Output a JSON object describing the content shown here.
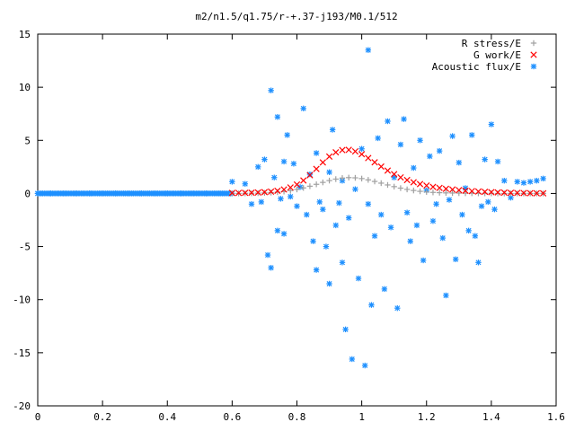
{
  "chart_data": {
    "type": "scatter",
    "title": "m2/n1.5/q1.75/r-+.37-j193/M0.1/512",
    "xlabel": "",
    "ylabel": "",
    "xlim": [
      0,
      1.6
    ],
    "ylim": [
      -20,
      15
    ],
    "x_ticks": [
      "0",
      "0.2",
      "0.4",
      "0.6",
      "0.8",
      "1",
      "1.2",
      "1.4",
      "1.6"
    ],
    "y_ticks": [
      "15",
      "10",
      "5",
      "0",
      "-5",
      "-10",
      "-15",
      "-20"
    ],
    "legend_position": "top-right",
    "series": [
      {
        "name": "R stress/E",
        "marker": "plus",
        "color": "#a0a0a0",
        "x": [
          0.6,
          0.62,
          0.64,
          0.66,
          0.68,
          0.7,
          0.72,
          0.74,
          0.76,
          0.78,
          0.8,
          0.82,
          0.84,
          0.86,
          0.88,
          0.9,
          0.92,
          0.94,
          0.96,
          0.98,
          1.0,
          1.02,
          1.04,
          1.06,
          1.08,
          1.1,
          1.12,
          1.14,
          1.16,
          1.18,
          1.2,
          1.22,
          1.24,
          1.26,
          1.28,
          1.3,
          1.32,
          1.34,
          1.36,
          1.38,
          1.4,
          1.42,
          1.44,
          1.46,
          1.48,
          1.5,
          1.52,
          1.54,
          1.56
        ],
        "y": [
          0.0,
          0.0,
          0.01,
          0.02,
          0.03,
          0.05,
          0.08,
          0.12,
          0.18,
          0.27,
          0.38,
          0.52,
          0.68,
          0.86,
          1.04,
          1.21,
          1.35,
          1.45,
          1.49,
          1.47,
          1.4,
          1.28,
          1.13,
          0.97,
          0.8,
          0.64,
          0.5,
          0.38,
          0.28,
          0.2,
          0.14,
          0.1,
          0.07,
          0.05,
          0.04,
          0.03,
          0.02,
          0.02,
          0.01,
          0.01,
          0.01,
          0.0,
          0.0,
          0.0,
          0.0,
          0.0,
          0.0,
          0.0,
          0.0
        ]
      },
      {
        "name": "G work/E",
        "marker": "cross",
        "color": "#ff0000",
        "x": [
          0.6,
          0.62,
          0.64,
          0.66,
          0.68,
          0.7,
          0.72,
          0.74,
          0.76,
          0.78,
          0.8,
          0.82,
          0.84,
          0.86,
          0.88,
          0.9,
          0.92,
          0.94,
          0.96,
          0.98,
          1.0,
          1.02,
          1.04,
          1.06,
          1.08,
          1.1,
          1.12,
          1.14,
          1.16,
          1.18,
          1.2,
          1.22,
          1.24,
          1.26,
          1.28,
          1.3,
          1.32,
          1.34,
          1.36,
          1.38,
          1.4,
          1.42,
          1.44,
          1.46,
          1.48,
          1.5,
          1.52,
          1.54,
          1.56
        ],
        "y": [
          0.05,
          0.05,
          0.06,
          0.07,
          0.09,
          0.12,
          0.17,
          0.25,
          0.37,
          0.56,
          0.84,
          1.22,
          1.72,
          2.31,
          2.92,
          3.47,
          3.87,
          4.08,
          4.1,
          3.96,
          3.69,
          3.33,
          2.93,
          2.53,
          2.15,
          1.81,
          1.51,
          1.26,
          1.05,
          0.88,
          0.74,
          0.62,
          0.52,
          0.44,
          0.37,
          0.31,
          0.26,
          0.22,
          0.18,
          0.15,
          0.12,
          0.1,
          0.08,
          0.06,
          0.05,
          0.04,
          0.03,
          0.02,
          0.01
        ]
      },
      {
        "name": "Acoustic flux/E",
        "marker": "star",
        "color": "#1e90ff",
        "x": [
          0.0,
          0.04,
          0.08,
          0.12,
          0.16,
          0.2,
          0.24,
          0.28,
          0.32,
          0.36,
          0.4,
          0.44,
          0.48,
          0.52,
          0.56,
          0.6,
          0.64,
          0.66,
          0.68,
          0.69,
          0.7,
          0.71,
          0.72,
          0.72,
          0.73,
          0.74,
          0.74,
          0.75,
          0.76,
          0.76,
          0.77,
          0.78,
          0.79,
          0.8,
          0.81,
          0.82,
          0.83,
          0.84,
          0.85,
          0.86,
          0.86,
          0.87,
          0.88,
          0.89,
          0.9,
          0.9,
          0.91,
          0.92,
          0.93,
          0.94,
          0.94,
          0.95,
          0.96,
          0.97,
          0.98,
          0.99,
          1.0,
          1.01,
          1.02,
          1.02,
          1.03,
          1.04,
          1.05,
          1.06,
          1.07,
          1.08,
          1.09,
          1.1,
          1.11,
          1.12,
          1.13,
          1.14,
          1.15,
          1.16,
          1.17,
          1.18,
          1.19,
          1.2,
          1.21,
          1.22,
          1.23,
          1.24,
          1.25,
          1.26,
          1.27,
          1.28,
          1.29,
          1.3,
          1.31,
          1.32,
          1.33,
          1.34,
          1.35,
          1.36,
          1.37,
          1.38,
          1.39,
          1.4,
          1.41,
          1.42,
          1.44,
          1.46,
          1.48,
          1.5,
          1.52,
          1.54,
          1.56
        ],
        "y": [
          0.0,
          0.0,
          0.0,
          0.0,
          0.0,
          0.0,
          0.0,
          0.0,
          0.0,
          0.0,
          0.0,
          0.0,
          0.0,
          0.0,
          0.0,
          1.1,
          0.9,
          -1.0,
          2.5,
          -0.8,
          3.2,
          -5.8,
          9.7,
          -7.0,
          1.5,
          7.2,
          -3.5,
          -0.5,
          3.0,
          -3.8,
          5.5,
          -0.3,
          2.8,
          -1.2,
          0.6,
          8.0,
          -2.0,
          1.8,
          -4.5,
          -7.2,
          3.8,
          -0.8,
          -1.5,
          -5.0,
          2.0,
          -8.5,
          6.0,
          -3.0,
          -0.9,
          -6.5,
          1.2,
          -12.8,
          -2.3,
          -15.6,
          0.4,
          -8.0,
          4.2,
          -16.2,
          13.5,
          -1.0,
          -10.5,
          -4.0,
          5.2,
          -2.0,
          -9.0,
          6.8,
          -3.2,
          1.5,
          -10.8,
          4.6,
          7.0,
          -1.8,
          -4.5,
          2.4,
          -3.0,
          5.0,
          -6.3,
          0.3,
          3.5,
          -2.6,
          -1.0,
          4.0,
          -4.2,
          -9.6,
          -0.6,
          5.4,
          -6.2,
          2.9,
          -2.0,
          0.5,
          -3.5,
          5.5,
          -4.0,
          -6.5,
          -1.2,
          3.2,
          -0.8,
          6.5,
          -1.5,
          3.0,
          1.2,
          -0.4,
          1.1,
          1.0,
          1.1,
          1.2,
          1.4
        ]
      }
    ]
  }
}
